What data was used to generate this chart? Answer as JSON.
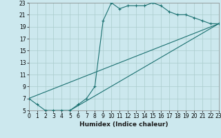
{
  "xlabel": "Humidex (Indice chaleur)",
  "bg_color": "#cce8ee",
  "grid_color": "#aacccc",
  "line_color": "#1a7070",
  "xlim": [
    0,
    23
  ],
  "ylim": [
    5,
    23
  ],
  "xticks": [
    0,
    1,
    2,
    3,
    4,
    5,
    6,
    7,
    8,
    9,
    10,
    11,
    12,
    13,
    14,
    15,
    16,
    17,
    18,
    19,
    20,
    21,
    22,
    23
  ],
  "yticks": [
    5,
    7,
    9,
    11,
    13,
    15,
    17,
    19,
    21,
    23
  ],
  "curve1_x": [
    0,
    1,
    2,
    3,
    4,
    5,
    6,
    7,
    8,
    9,
    10,
    11,
    12,
    13,
    14,
    15,
    16,
    17,
    18,
    19,
    20,
    21,
    22,
    23
  ],
  "curve1_y": [
    7,
    6,
    5,
    5,
    5,
    5,
    6,
    7,
    9,
    20,
    23,
    22,
    22.5,
    22.5,
    22.5,
    23,
    22.5,
    21.5,
    21,
    21,
    20.5,
    20,
    19.5,
    19.5
  ],
  "line2_x": [
    0,
    23
  ],
  "line2_y": [
    7,
    19.5
  ],
  "line3_x": [
    5,
    23
  ],
  "line3_y": [
    5,
    19.5
  ],
  "tick_fontsize": 5.5,
  "xlabel_fontsize": 6.5
}
